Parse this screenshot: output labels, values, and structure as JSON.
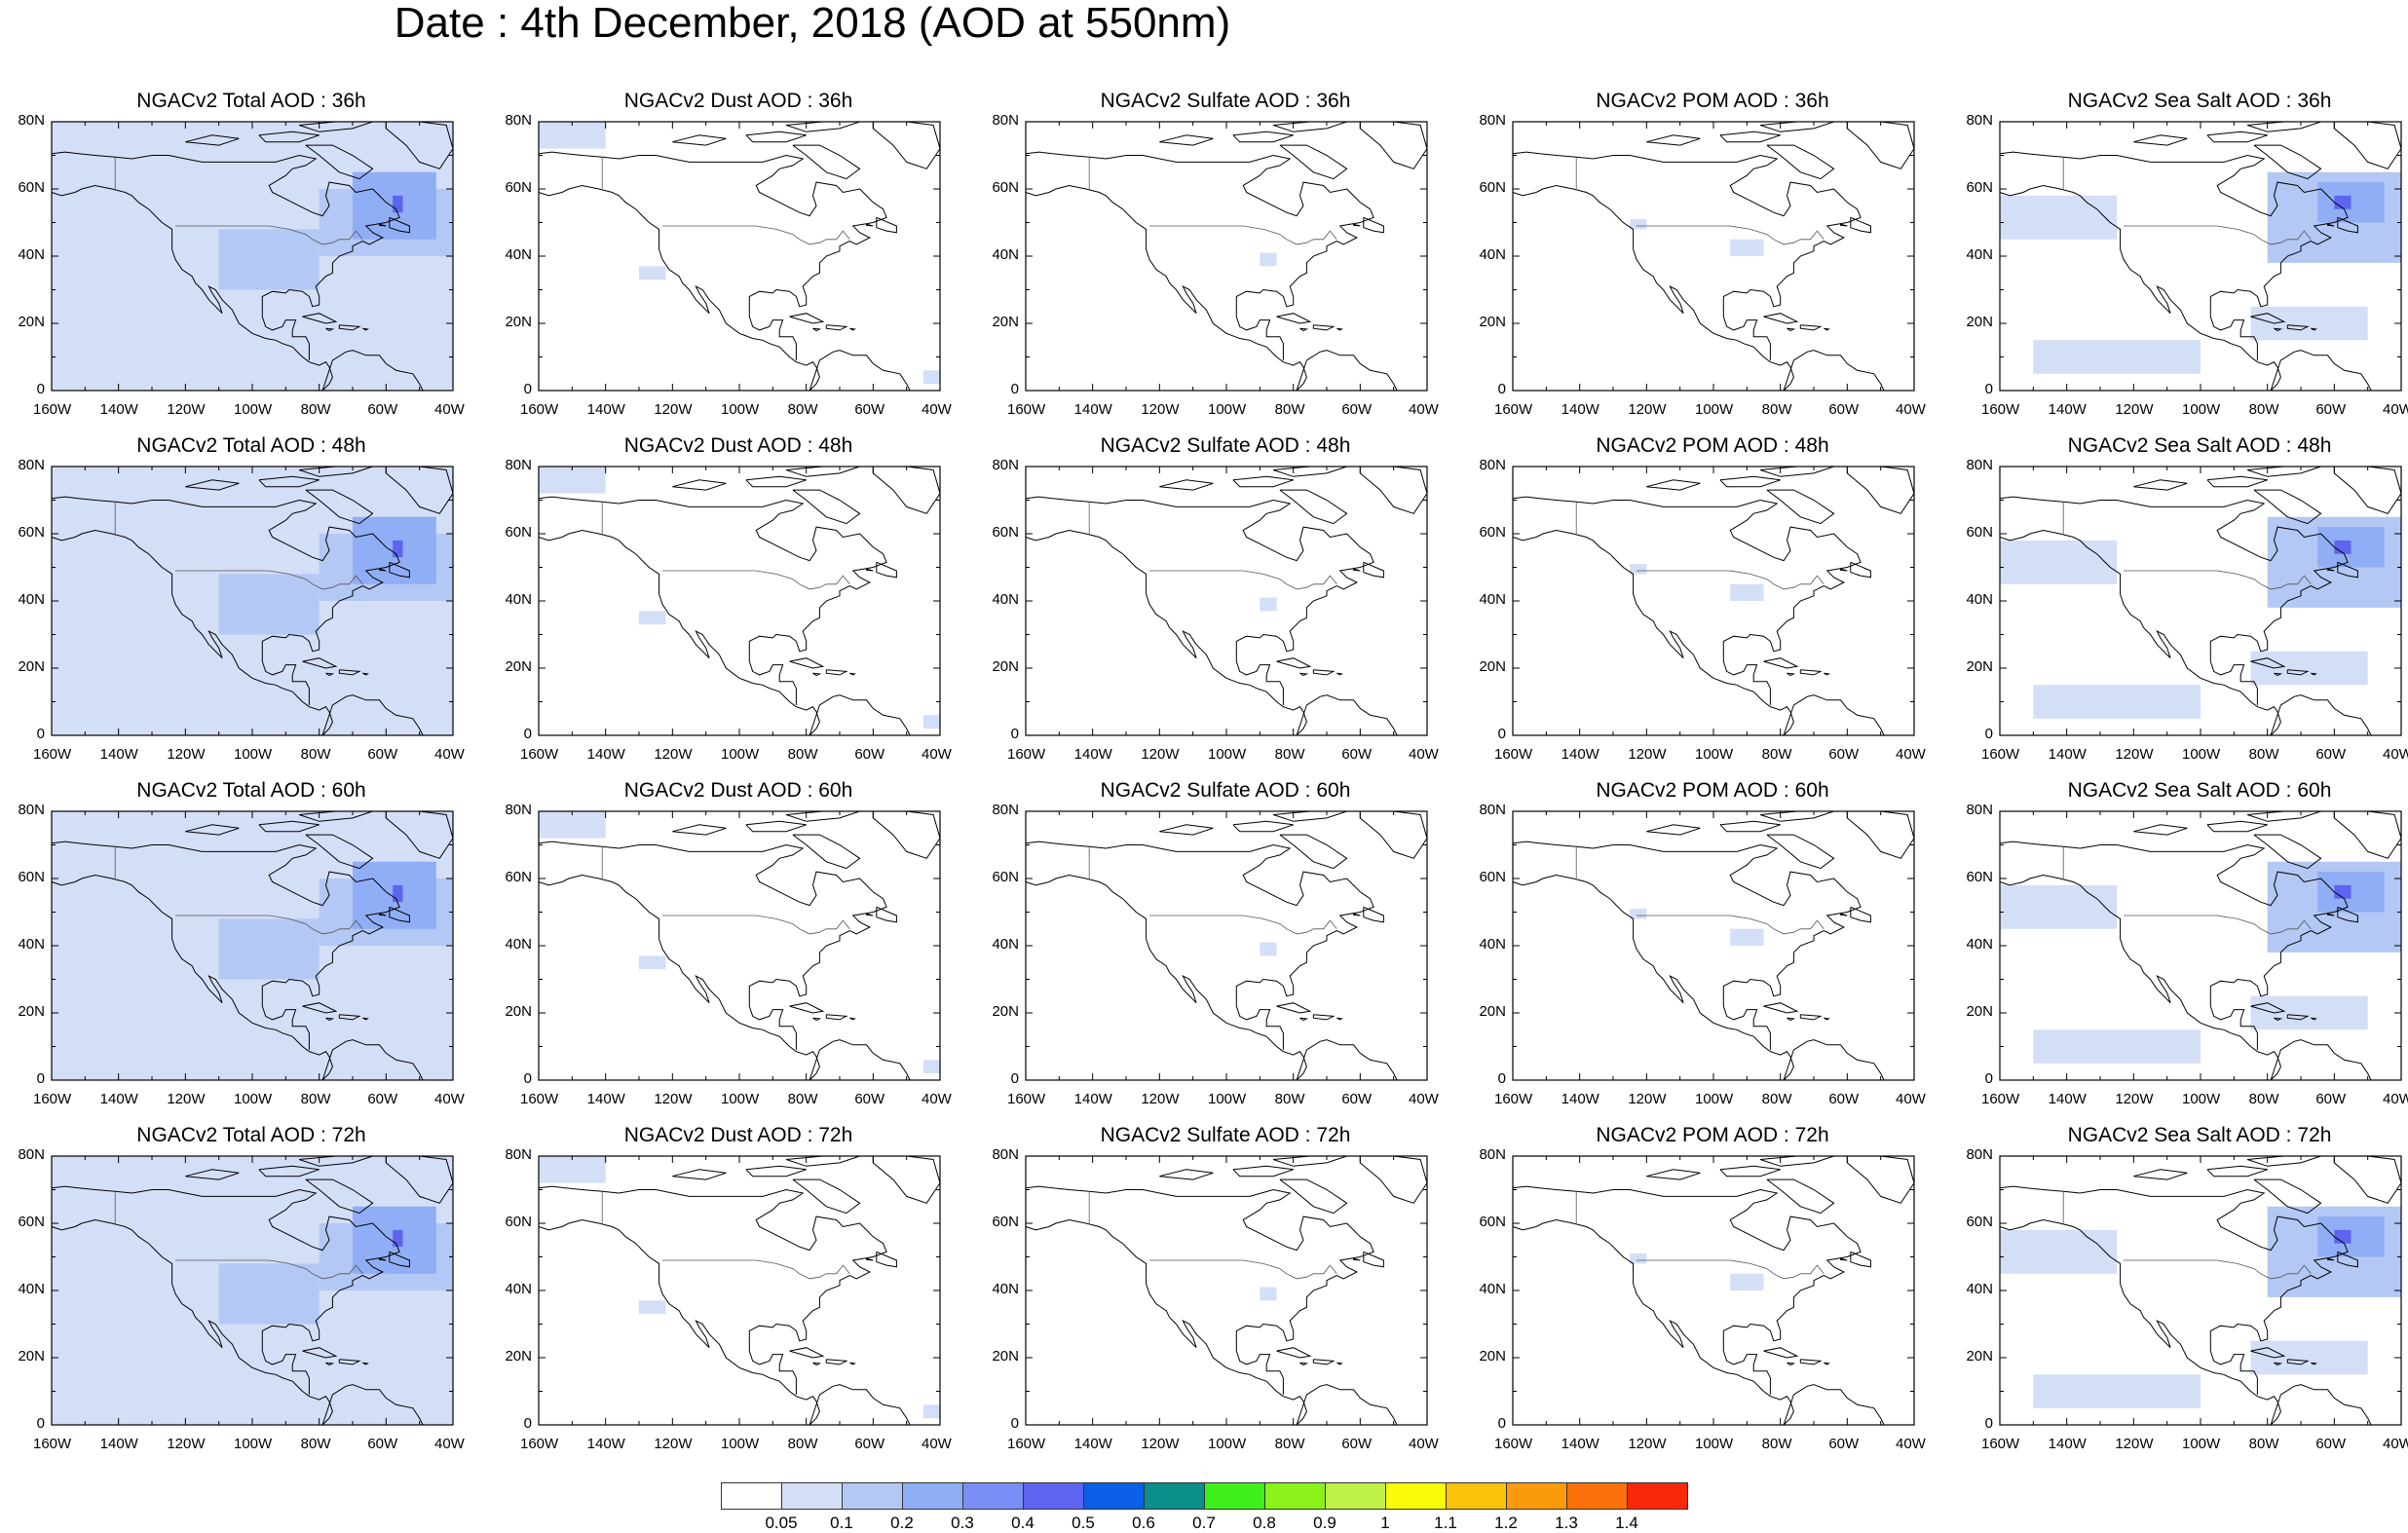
{
  "title": "Date : 4th December, 2018 (AOD at 550nm)",
  "lat_labels": [
    "80N",
    "60N",
    "40N",
    "20N",
    "0"
  ],
  "lon_labels": [
    "160W",
    "140W",
    "120W",
    "100W",
    "80W",
    "60W",
    "40W"
  ],
  "panels": [
    [
      {
        "title": "NGACv2 Total AOD : 36h",
        "species": "total",
        "level": 0.05
      },
      {
        "title": "NGACv2 Dust AOD : 36h",
        "species": "dust",
        "level": 0.05
      },
      {
        "title": "NGACv2 Sulfate AOD : 36h",
        "species": "sulfate",
        "level": 0.05
      },
      {
        "title": "NGACv2 POM AOD : 36h",
        "species": "pom",
        "level": 0.05
      },
      {
        "title": "NGACv2 Sea Salt AOD : 36h",
        "species": "seasalt",
        "level": 0.05
      }
    ],
    [
      {
        "title": "NGACv2 Total AOD : 48h",
        "species": "total",
        "level": 0.05
      },
      {
        "title": "NGACv2 Dust AOD : 48h",
        "species": "dust",
        "level": 0.05
      },
      {
        "title": "NGACv2 Sulfate AOD : 48h",
        "species": "sulfate",
        "level": 0.05
      },
      {
        "title": "NGACv2 POM AOD : 48h",
        "species": "pom",
        "level": 0.05
      },
      {
        "title": "NGACv2 Sea Salt AOD : 48h",
        "species": "seasalt",
        "level": 0.05
      }
    ],
    [
      {
        "title": "NGACv2 Total AOD : 60h",
        "species": "total",
        "level": 0.05
      },
      {
        "title": "NGACv2 Dust AOD : 60h",
        "species": "dust",
        "level": 0.05
      },
      {
        "title": "NGACv2 Sulfate AOD : 60h",
        "species": "sulfate",
        "level": 0.05
      },
      {
        "title": "NGACv2 POM AOD : 60h",
        "species": "pom",
        "level": 0.05
      },
      {
        "title": "NGACv2 Sea Salt AOD : 60h",
        "species": "seasalt",
        "level": 0.05
      }
    ],
    [
      {
        "title": "NGACv2 Total AOD : 72h",
        "species": "total",
        "level": 0.05
      },
      {
        "title": "NGACv2 Dust AOD : 72h",
        "species": "dust",
        "level": 0.05
      },
      {
        "title": "NGACv2 Sulfate AOD : 72h",
        "species": "sulfate",
        "level": 0.05
      },
      {
        "title": "NGACv2 POM AOD : 72h",
        "species": "pom",
        "level": 0.05
      },
      {
        "title": "NGACv2 Sea Salt  AOD : 72h",
        "species": "seasalt",
        "level": 0.05
      }
    ]
  ],
  "colorbar": {
    "labels": [
      "0.05",
      "0.1",
      "0.2",
      "0.3",
      "0.4",
      "0.5",
      "0.6",
      "0.7",
      "0.8",
      "0.9",
      "1",
      "1.1",
      "1.2",
      "1.3",
      "1.4"
    ],
    "colors": [
      "#ffffff",
      "#d3def7",
      "#b4c8f5",
      "#90aef5",
      "#7a8ff5",
      "#5c64f0",
      "#0b5fe8",
      "#0b8f8a",
      "#3df01c",
      "#8af21a",
      "#bff046",
      "#f8fc0a",
      "#fbc20a",
      "#fb9a0a",
      "#fb700a",
      "#f8280a"
    ]
  },
  "colors": {
    "aod_light": "#d3def7",
    "aod_medium": "#b4c8f5",
    "aod_strong": "#90aef5",
    "coastline": "#000000"
  }
}
